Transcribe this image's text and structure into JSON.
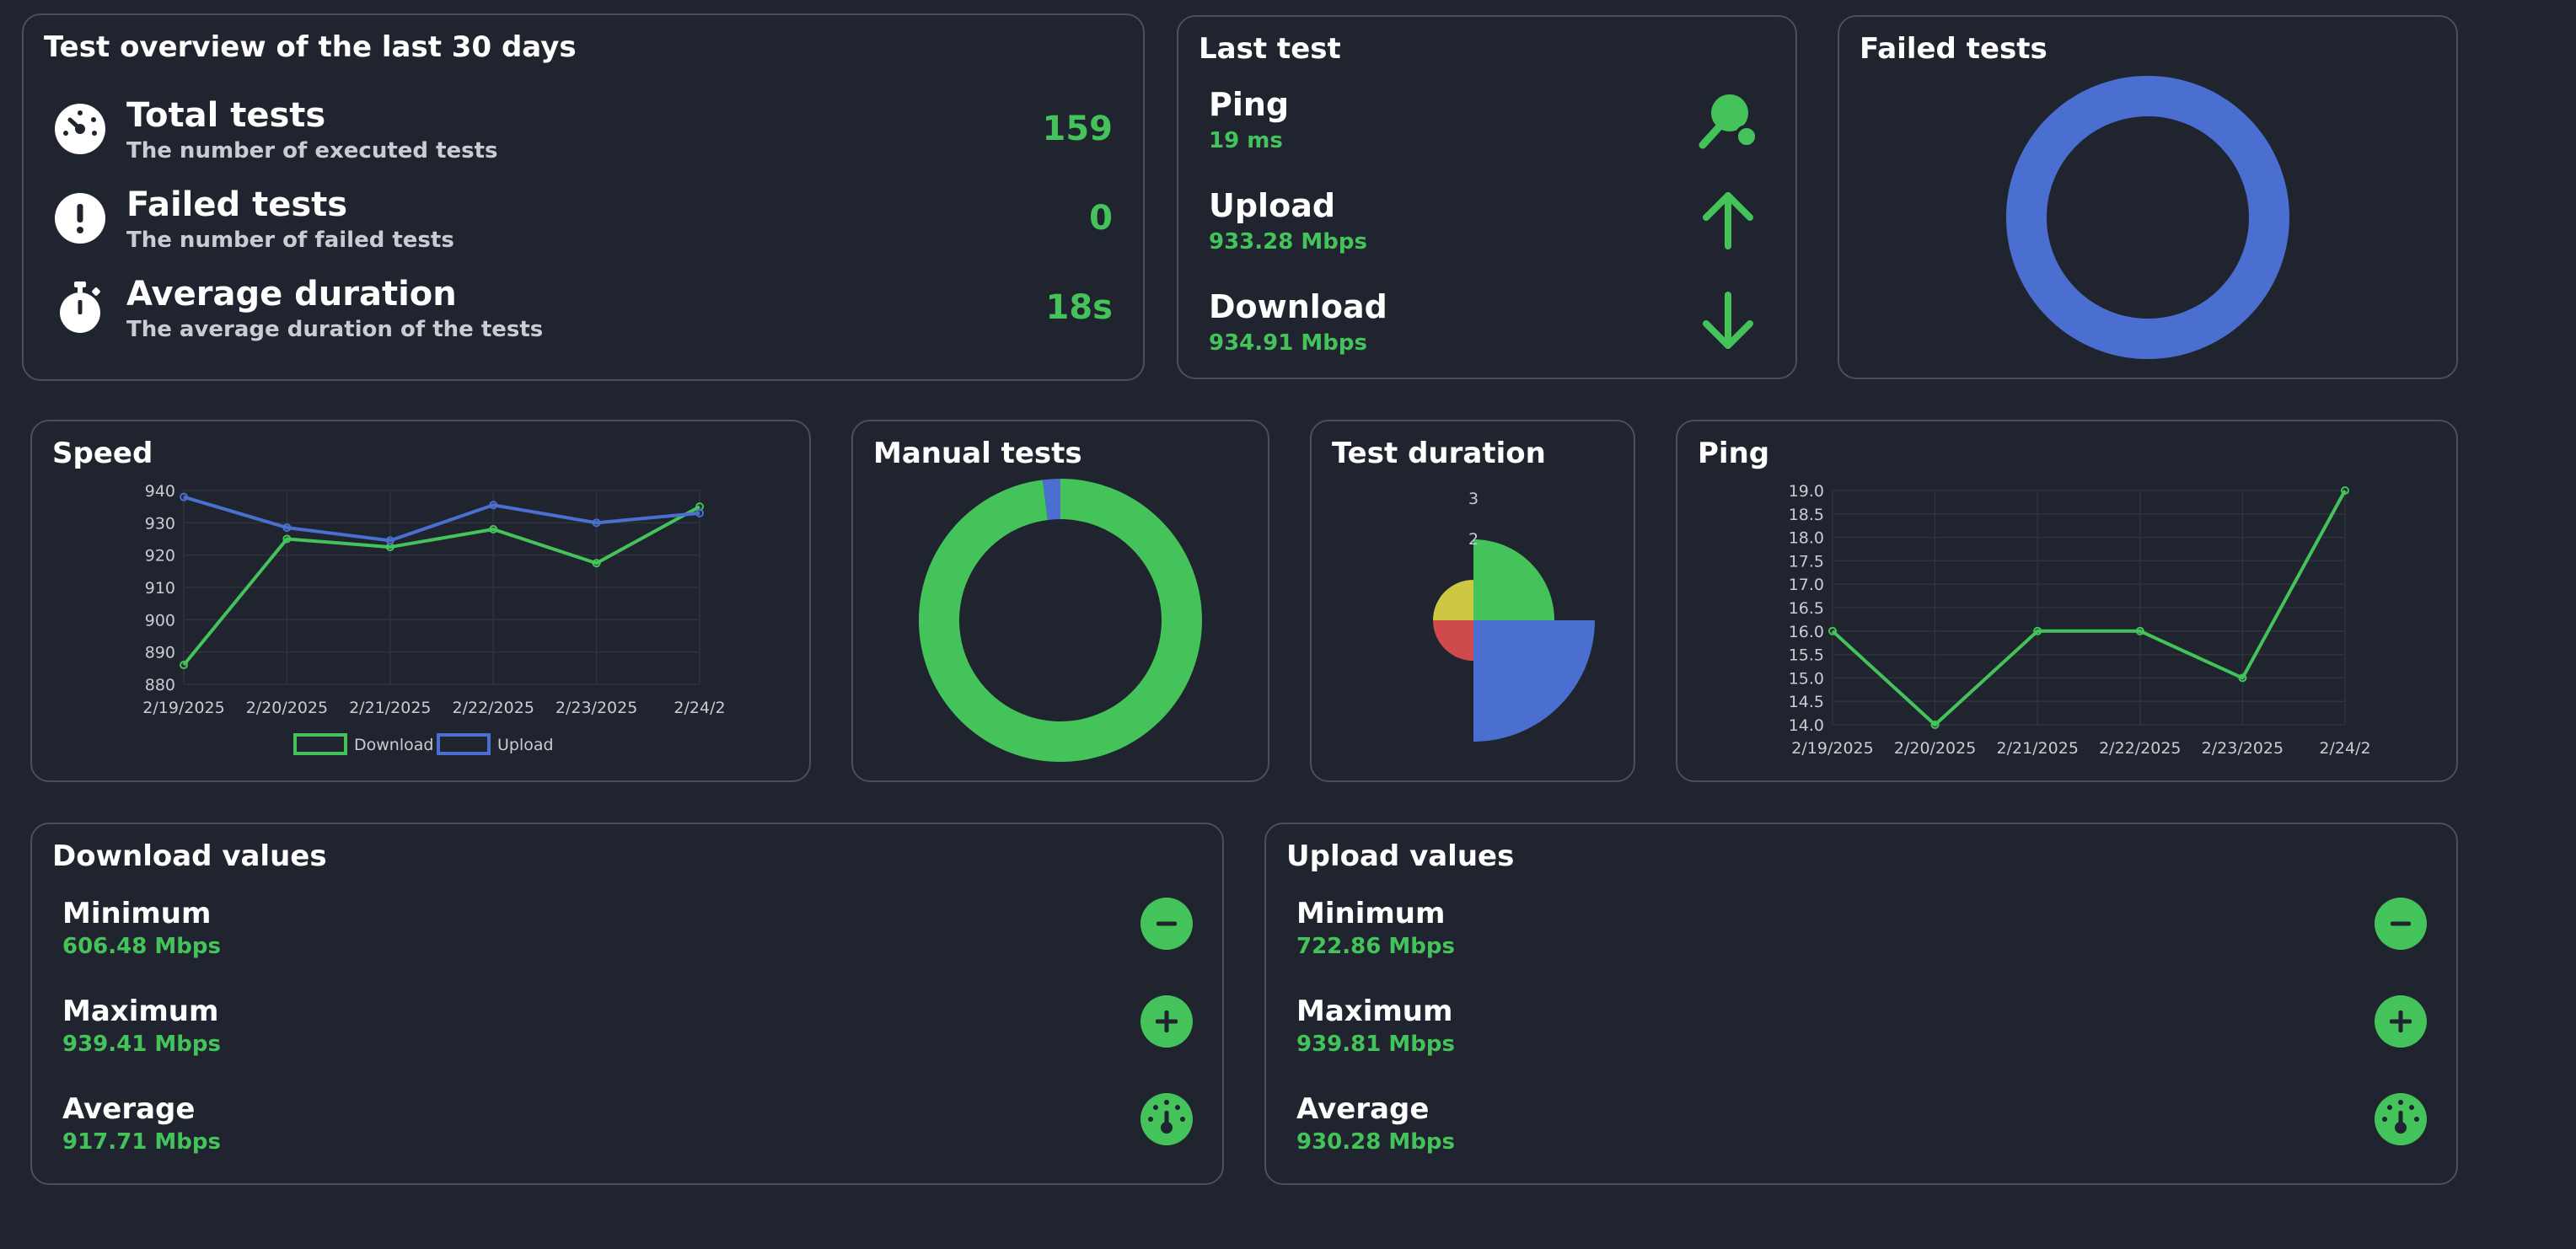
{
  "overview": {
    "title": "Test overview of the last 30 days",
    "items": [
      {
        "icon": "speedometer-icon",
        "label": "Total tests",
        "sub": "The number of executed tests",
        "value": "159"
      },
      {
        "icon": "exclamation-icon",
        "label": "Failed tests",
        "sub": "The number of failed tests",
        "value": "0"
      },
      {
        "icon": "stopwatch-icon",
        "label": "Average duration",
        "sub": "The average duration of the tests",
        "value": "18s"
      }
    ]
  },
  "last_test": {
    "title": "Last test",
    "items": [
      {
        "icon": "ping-pong-icon",
        "label": "Ping",
        "value": "19 ms"
      },
      {
        "icon": "arrow-up-icon",
        "label": "Upload",
        "value": "933.28 Mbps"
      },
      {
        "icon": "arrow-down-icon",
        "label": "Download",
        "value": "934.91 Mbps"
      }
    ]
  },
  "failed_tests": {
    "title": "Failed tests"
  },
  "speed": {
    "title": "Speed"
  },
  "manual_tests": {
    "title": "Manual tests"
  },
  "test_duration": {
    "title": "Test duration"
  },
  "ping": {
    "title": "Ping"
  },
  "download_values": {
    "title": "Download values",
    "items": [
      {
        "icon": "minus-icon",
        "label": "Minimum",
        "value": "606.48 Mbps"
      },
      {
        "icon": "plus-icon",
        "label": "Maximum",
        "value": "939.41 Mbps"
      },
      {
        "icon": "gauge-icon",
        "label": "Average",
        "value": "917.71 Mbps"
      }
    ]
  },
  "upload_values": {
    "title": "Upload values",
    "items": [
      {
        "icon": "minus-icon",
        "label": "Minimum",
        "value": "722.86 Mbps"
      },
      {
        "icon": "plus-icon",
        "label": "Maximum",
        "value": "939.81 Mbps"
      },
      {
        "icon": "gauge-icon",
        "label": "Average",
        "value": "930.28 Mbps"
      }
    ]
  },
  "colors": {
    "background": "#20242f",
    "border": "#4a4f5c",
    "green": "#43c35a",
    "blue": "#4a6fd1",
    "yellow": "#cdc744",
    "red": "#cf4a4a"
  },
  "chart_data": [
    {
      "id": "failed",
      "type": "pie",
      "variant": "doughnut",
      "values": [
        1
      ],
      "colors": [
        "#4a6fd1"
      ]
    },
    {
      "id": "speed",
      "type": "line",
      "categories": [
        "2/19/2025",
        "2/20/2025",
        "2/21/2025",
        "2/22/2025",
        "2/23/2025",
        "2/24/2"
      ],
      "series": [
        {
          "name": "Download",
          "color": "#43c35a",
          "values": [
            886,
            925,
            922.5,
            928,
            917.5,
            935
          ]
        },
        {
          "name": "Upload",
          "color": "#4a6fd1",
          "values": [
            938,
            928.5,
            924.5,
            935.5,
            930,
            933
          ]
        }
      ],
      "y_ticks": [
        "880",
        "890",
        "900",
        "910",
        "920",
        "930",
        "940"
      ],
      "ylim": [
        880,
        940
      ],
      "legend": "bottom",
      "grid": true
    },
    {
      "id": "manual",
      "type": "pie",
      "variant": "doughnut",
      "values": [
        98,
        2
      ],
      "colors": [
        "#43c35a",
        "#4a6fd1"
      ]
    },
    {
      "id": "duration",
      "type": "polar-area",
      "values": [
        2,
        3,
        1,
        1
      ],
      "colors": [
        "#43c35a",
        "#4a6fd1",
        "#cf4a4a",
        "#cdc744"
      ],
      "r_ticks": [
        "2",
        "3"
      ],
      "rmax": 3
    },
    {
      "id": "ping",
      "type": "line",
      "categories": [
        "2/19/2025",
        "2/20/2025",
        "2/21/2025",
        "2/22/2025",
        "2/23/2025",
        "2/24/2"
      ],
      "series": [
        {
          "color": "#43c35a",
          "values": [
            16,
            14,
            16,
            16,
            15,
            19
          ]
        }
      ],
      "y_ticks": [
        "14.0",
        "14.5",
        "15.0",
        "15.5",
        "16.0",
        "16.5",
        "17.0",
        "17.5",
        "18.0",
        "18.5",
        "19.0"
      ],
      "ylim": [
        14,
        19
      ],
      "grid": true
    }
  ]
}
